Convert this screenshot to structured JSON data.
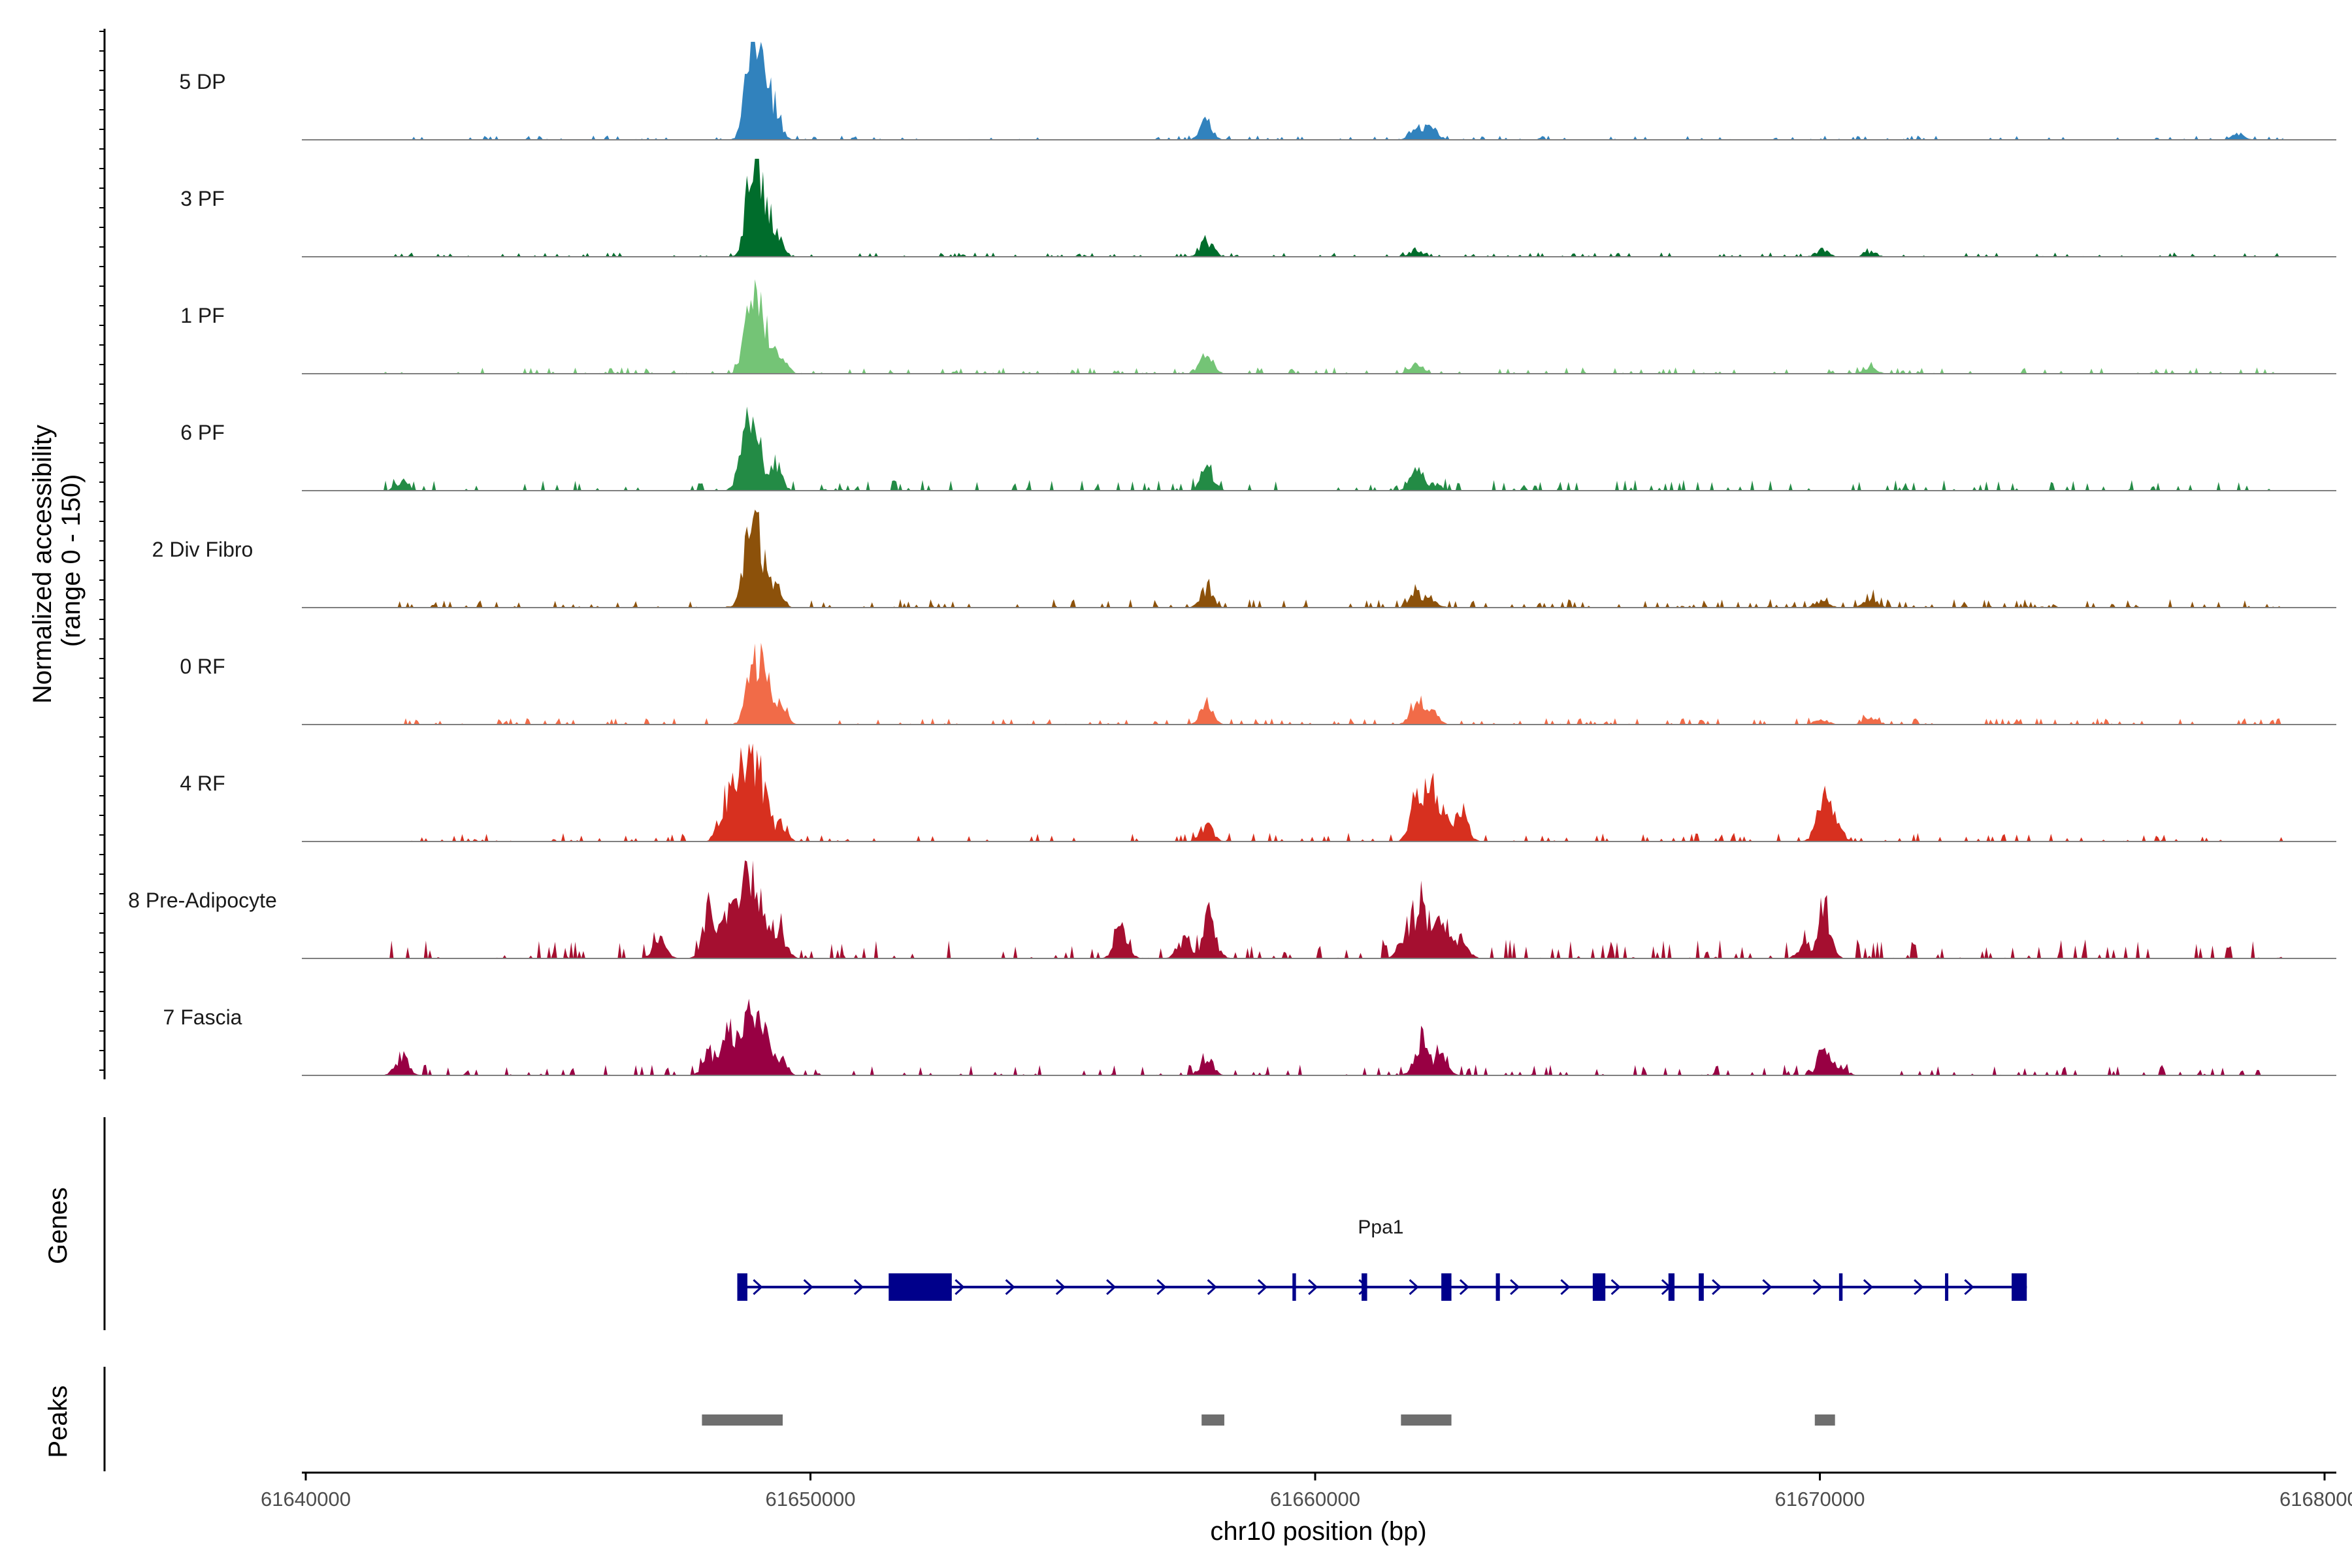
{
  "chart_data": {
    "type": "area",
    "title": "",
    "ylabel_line1": "Normalized accessibility",
    "ylabel_line2": "(range 0 - 150)",
    "xlabel": "chr10 position (bp)",
    "xlim": [
      61640000,
      61680000
    ],
    "ylim": [
      0,
      150
    ],
    "x_ticks": [
      61640000,
      61650000,
      61660000,
      61670000,
      61680000
    ],
    "x_tick_labels": [
      "61640000",
      "61650000",
      "61660000",
      "61670000",
      "61680000"
    ],
    "series": [
      {
        "name": "5 DP",
        "color": "#3182bd",
        "peaks": [
          [
            61648800,
            0.5
          ],
          [
            61648900,
            0.75
          ],
          [
            61649100,
            0.5
          ],
          [
            61649300,
            0.25
          ],
          [
            61657850,
            0.2
          ],
          [
            61662000,
            0.14
          ],
          [
            61662300,
            0.13
          ],
          [
            61678300,
            0.06
          ]
        ],
        "noise": 0.02
      },
      {
        "name": "3 PF",
        "color": "#006d2c",
        "peaks": [
          [
            61648850,
            0.95
          ],
          [
            61649050,
            0.5
          ],
          [
            61649300,
            0.28
          ],
          [
            61657850,
            0.18
          ],
          [
            61662000,
            0.08
          ],
          [
            61670050,
            0.08
          ],
          [
            61671000,
            0.05
          ]
        ],
        "noise": 0.02
      },
      {
        "name": "1 PF",
        "color": "#74c476",
        "peaks": [
          [
            61648800,
            0.7
          ],
          [
            61649050,
            0.55
          ],
          [
            61649400,
            0.22
          ],
          [
            61657850,
            0.22
          ],
          [
            61662000,
            0.12
          ],
          [
            61671000,
            0.08
          ]
        ],
        "noise": 0.03
      },
      {
        "name": "6 PF",
        "color": "#238b45",
        "peaks": [
          [
            61641900,
            0.1
          ],
          [
            61648700,
            0.6
          ],
          [
            61648950,
            0.45
          ],
          [
            61649300,
            0.28
          ],
          [
            61657850,
            0.24
          ],
          [
            61662000,
            0.22
          ],
          [
            61662400,
            0.08
          ]
        ],
        "noise": 0.05
      },
      {
        "name": "2 Div Fibro",
        "color": "#8c510a",
        "peaks": [
          [
            61648800,
            0.95
          ],
          [
            61649050,
            0.5
          ],
          [
            61649300,
            0.22
          ],
          [
            61657850,
            0.2
          ],
          [
            61662000,
            0.15
          ],
          [
            61662300,
            0.1
          ],
          [
            61670050,
            0.08
          ],
          [
            61671000,
            0.1
          ]
        ],
        "noise": 0.04
      },
      {
        "name": "0 RF",
        "color": "#f16b48",
        "peaks": [
          [
            61648850,
            0.75
          ],
          [
            61649100,
            0.45
          ],
          [
            61649400,
            0.2
          ],
          [
            61657850,
            0.22
          ],
          [
            61662000,
            0.25
          ],
          [
            61662300,
            0.18
          ],
          [
            61670050,
            0.06
          ],
          [
            61671000,
            0.07
          ]
        ],
        "noise": 0.03
      },
      {
        "name": "4 RF",
        "color": "#d7301f",
        "peaks": [
          [
            61648300,
            0.4
          ],
          [
            61648550,
            0.55
          ],
          [
            61648800,
            0.85
          ],
          [
            61649050,
            0.55
          ],
          [
            61649400,
            0.18
          ],
          [
            61657850,
            0.18
          ],
          [
            61662000,
            0.45
          ],
          [
            61662300,
            0.55
          ],
          [
            61662600,
            0.25
          ],
          [
            61662900,
            0.3
          ],
          [
            61670050,
            0.45
          ],
          [
            61670300,
            0.2
          ]
        ],
        "noise": 0.04
      },
      {
        "name": "8 Pre-Adipocyte",
        "color": "#a50f30",
        "peaks": [
          [
            61647000,
            0.2
          ],
          [
            61648000,
            0.55
          ],
          [
            61648400,
            0.5
          ],
          [
            61648750,
            0.9
          ],
          [
            61649050,
            0.55
          ],
          [
            61649400,
            0.25
          ],
          [
            61656150,
            0.4
          ],
          [
            61657900,
            0.45
          ],
          [
            61657400,
            0.2
          ],
          [
            61661800,
            0.3
          ],
          [
            61662100,
            0.6
          ],
          [
            61662500,
            0.5
          ],
          [
            61662900,
            0.2
          ],
          [
            61670100,
            0.45
          ],
          [
            61669700,
            0.15
          ]
        ],
        "noise": 0.09
      },
      {
        "name": "7 Fascia",
        "color": "#980043",
        "peaks": [
          [
            61641900,
            0.2
          ],
          [
            61648000,
            0.25
          ],
          [
            61648400,
            0.55
          ],
          [
            61648750,
            0.65
          ],
          [
            61649050,
            0.5
          ],
          [
            61649400,
            0.18
          ],
          [
            61657850,
            0.2
          ],
          [
            61662100,
            0.4
          ],
          [
            61662500,
            0.28
          ],
          [
            61670100,
            0.3
          ],
          [
            61670400,
            0.1
          ]
        ],
        "noise": 0.05
      }
    ],
    "genes_track": {
      "label": "Genes",
      "color": "#00008b",
      "gene": {
        "name": "Ppa1",
        "start": 61648550,
        "end": 61674100,
        "exons": [
          [
            61648550,
            61648750
          ],
          [
            61651550,
            61652800
          ],
          [
            61659550,
            61659620
          ],
          [
            61660920,
            61661030
          ],
          [
            61662500,
            61662700
          ],
          [
            61663580,
            61663660
          ],
          [
            61665500,
            61665750
          ],
          [
            61667000,
            61667120
          ],
          [
            61667600,
            61667700
          ],
          [
            61670380,
            61670450
          ],
          [
            61672480,
            61672540
          ],
          [
            61673800,
            61674100
          ]
        ]
      }
    },
    "peaks_track": {
      "label": "Peaks",
      "color": "#6e6e6e",
      "regions": [
        [
          61647850,
          61649450
        ],
        [
          61657750,
          61658200
        ],
        [
          61661700,
          61662700
        ],
        [
          61669900,
          61670300
        ]
      ]
    }
  }
}
